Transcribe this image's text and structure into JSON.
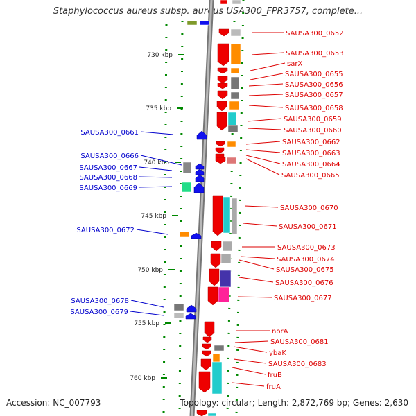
{
  "title": "Staphylococcus aureus subsp. aureus USA300_FPR3757, complete...",
  "footer": {
    "accession": "Accession: NC_007793",
    "summary": "Topology: circular; Length: 2,872,769 bp; Genes: 2,630"
  },
  "axis_labels": [
    "730 kbp",
    "735 kbp",
    "740 kbp",
    "745 kbp",
    "750 kbp",
    "755 kbp",
    "760 kbp"
  ],
  "colors": {
    "forward_strand_label": "#dd0000",
    "reverse_strand_label": "#0000cc",
    "forward_gene": "#ee0000",
    "reverse_gene": "#1111ee",
    "backbone": "#999999",
    "tick": "#008800"
  },
  "genes_forward": [
    "SAUSA300_0652",
    "SAUSA300_0653",
    "sarX",
    "SAUSA300_0655",
    "SAUSA300_0656",
    "SAUSA300_0657",
    "SAUSA300_0658",
    "SAUSA300_0659",
    "SAUSA300_0660",
    "SAUSA300_0662",
    "SAUSA300_0663",
    "SAUSA300_0664",
    "SAUSA300_0665",
    "SAUSA300_0670",
    "SAUSA300_0671",
    "SAUSA300_0673",
    "SAUSA300_0674",
    "SAUSA300_0675",
    "SAUSA300_0676",
    "SAUSA300_0677",
    "norA",
    "SAUSA300_0681",
    "ybaK",
    "SAUSA300_0683",
    "fruB",
    "fruA"
  ],
  "genes_reverse": [
    "SAUSA300_0661",
    "SAUSA300_0666",
    "SAUSA300_0667",
    "SAUSA300_0668",
    "SAUSA300_0669",
    "SAUSA300_0672",
    "SAUSA300_0678",
    "SAUSA300_0679"
  ]
}
